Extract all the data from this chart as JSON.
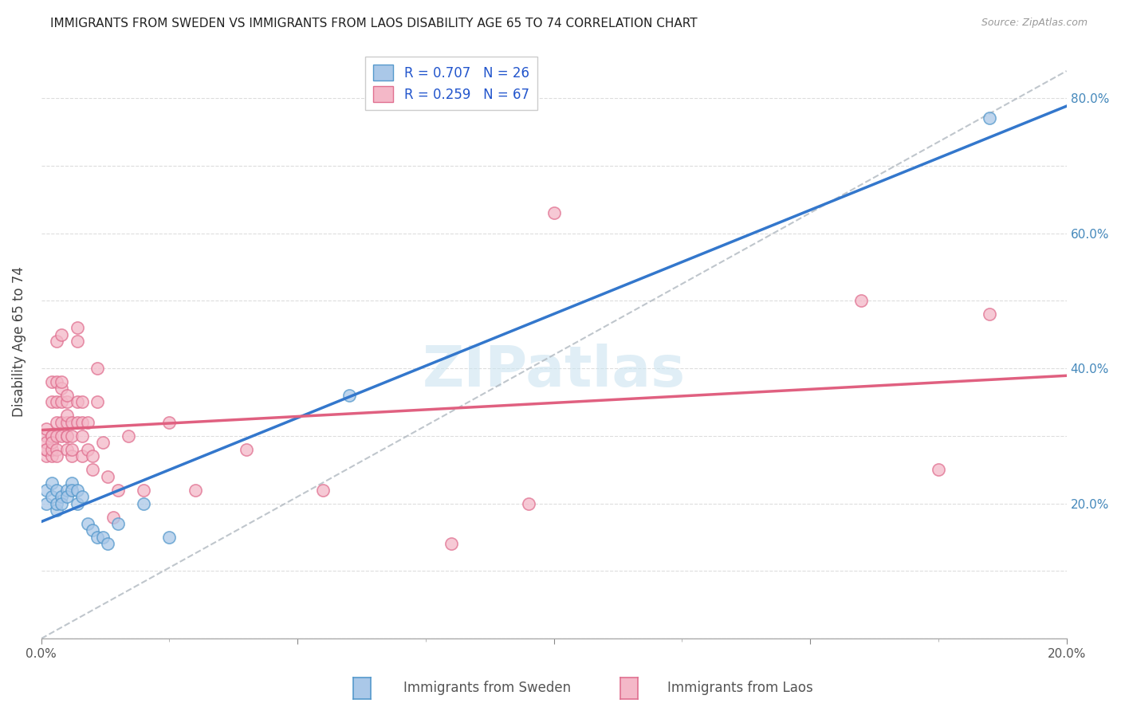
{
  "title": "IMMIGRANTS FROM SWEDEN VS IMMIGRANTS FROM LAOS DISABILITY AGE 65 TO 74 CORRELATION CHART",
  "source": "Source: ZipAtlas.com",
  "ylabel": "Disability Age 65 to 74",
  "x_label_legend": "Immigrants from Sweden",
  "x_label_legend2": "Immigrants from Laos",
  "R_sweden": 0.707,
  "N_sweden": 26,
  "R_laos": 0.259,
  "N_laos": 67,
  "color_sweden_fill": "#aac8e8",
  "color_sweden_edge": "#5599cc",
  "color_laos_fill": "#f4b8c8",
  "color_laos_edge": "#e07090",
  "color_sweden_line": "#3377cc",
  "color_laos_line": "#e06080",
  "watermark_color": "#cce4f0",
  "xlim": [
    0.0,
    0.2
  ],
  "ylim": [
    0.0,
    0.88
  ],
  "sweden_x": [
    0.001,
    0.001,
    0.002,
    0.002,
    0.003,
    0.003,
    0.003,
    0.004,
    0.004,
    0.005,
    0.005,
    0.006,
    0.006,
    0.007,
    0.007,
    0.008,
    0.009,
    0.01,
    0.011,
    0.012,
    0.013,
    0.015,
    0.02,
    0.025,
    0.06,
    0.185
  ],
  "sweden_y": [
    0.22,
    0.2,
    0.23,
    0.21,
    0.19,
    0.22,
    0.2,
    0.21,
    0.2,
    0.22,
    0.21,
    0.23,
    0.22,
    0.2,
    0.22,
    0.21,
    0.17,
    0.16,
    0.15,
    0.15,
    0.14,
    0.17,
    0.2,
    0.15,
    0.36,
    0.77
  ],
  "laos_x": [
    0.001,
    0.001,
    0.001,
    0.001,
    0.001,
    0.001,
    0.002,
    0.002,
    0.002,
    0.002,
    0.002,
    0.002,
    0.002,
    0.003,
    0.003,
    0.003,
    0.003,
    0.003,
    0.003,
    0.003,
    0.004,
    0.004,
    0.004,
    0.004,
    0.004,
    0.004,
    0.005,
    0.005,
    0.005,
    0.005,
    0.005,
    0.005,
    0.005,
    0.006,
    0.006,
    0.006,
    0.006,
    0.007,
    0.007,
    0.007,
    0.007,
    0.008,
    0.008,
    0.008,
    0.008,
    0.009,
    0.009,
    0.01,
    0.01,
    0.011,
    0.011,
    0.012,
    0.013,
    0.014,
    0.015,
    0.017,
    0.02,
    0.025,
    0.03,
    0.04,
    0.055,
    0.08,
    0.095,
    0.1,
    0.16,
    0.175,
    0.185
  ],
  "laos_y": [
    0.27,
    0.28,
    0.3,
    0.29,
    0.31,
    0.28,
    0.27,
    0.28,
    0.3,
    0.35,
    0.38,
    0.3,
    0.29,
    0.44,
    0.38,
    0.35,
    0.32,
    0.3,
    0.28,
    0.27,
    0.3,
    0.32,
    0.35,
    0.37,
    0.38,
    0.45,
    0.3,
    0.32,
    0.33,
    0.35,
    0.36,
    0.28,
    0.3,
    0.27,
    0.28,
    0.3,
    0.32,
    0.32,
    0.44,
    0.46,
    0.35,
    0.27,
    0.3,
    0.32,
    0.35,
    0.28,
    0.32,
    0.25,
    0.27,
    0.35,
    0.4,
    0.29,
    0.24,
    0.18,
    0.22,
    0.3,
    0.22,
    0.32,
    0.22,
    0.28,
    0.22,
    0.14,
    0.2,
    0.63,
    0.5,
    0.25,
    0.48
  ]
}
